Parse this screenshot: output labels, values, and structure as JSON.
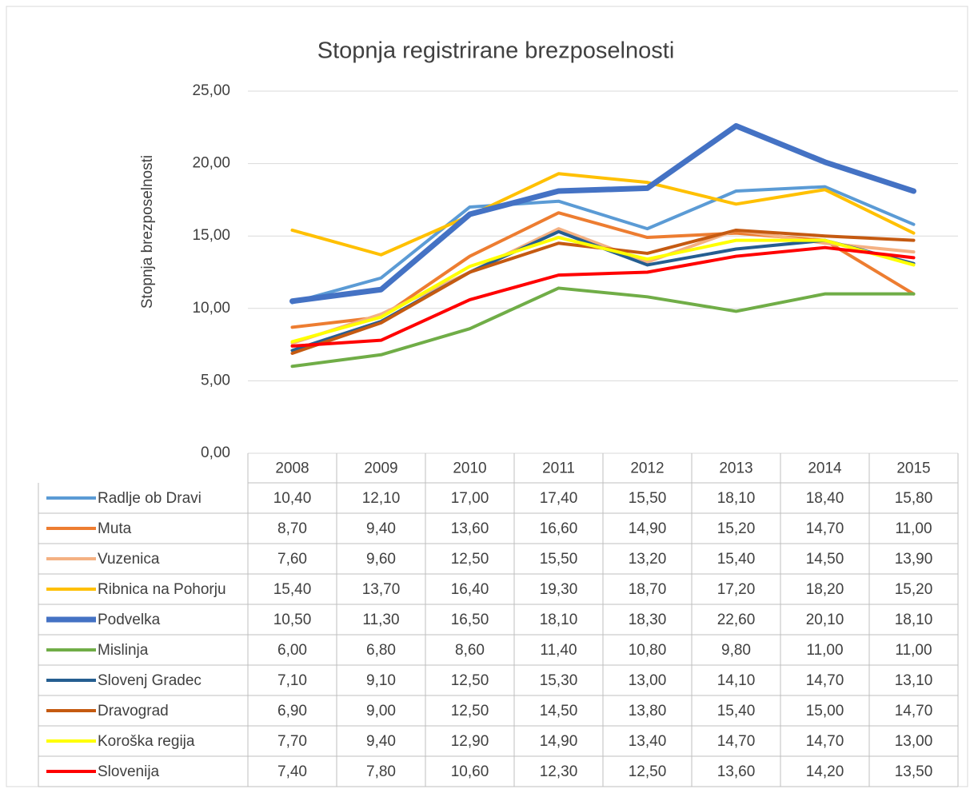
{
  "chart_data": {
    "type": "line",
    "title": "Stopnja registrirane brezposelnosti",
    "y_label": "Stopnja brezposelnosti",
    "categories": [
      "2008",
      "2009",
      "2010",
      "2011",
      "2012",
      "2013",
      "2014",
      "2015"
    ],
    "ylim": [
      0,
      25
    ],
    "yticks": [
      {
        "value": 0,
        "label": "0,00"
      },
      {
        "value": 5,
        "label": "5,00"
      },
      {
        "value": 10,
        "label": "10,00"
      },
      {
        "value": 15,
        "label": "15,00"
      },
      {
        "value": 20,
        "label": "20,00"
      },
      {
        "value": 25,
        "label": "25,00"
      }
    ],
    "grid": true,
    "series": [
      {
        "name": "Radlje ob Dravi",
        "color": "#5b9bd5",
        "values": [
          10.4,
          12.1,
          17.0,
          17.4,
          15.5,
          18.1,
          18.4,
          15.8
        ],
        "value_labels": [
          "10,40",
          "12,10",
          "17,00",
          "17,40",
          "15,50",
          "18,10",
          "18,40",
          "15,80"
        ]
      },
      {
        "name": "Muta",
        "color": "#ed7d31",
        "values": [
          8.7,
          9.4,
          13.6,
          16.6,
          14.9,
          15.2,
          14.7,
          11.0
        ],
        "value_labels": [
          "8,70",
          "9,40",
          "13,60",
          "16,60",
          "14,90",
          "15,20",
          "14,70",
          "11,00"
        ]
      },
      {
        "name": "Vuzenica",
        "color": "#f4b183",
        "values": [
          7.6,
          9.6,
          12.5,
          15.5,
          13.2,
          15.4,
          14.5,
          13.9
        ],
        "value_labels": [
          "7,60",
          "9,60",
          "12,50",
          "15,50",
          "13,20",
          "15,40",
          "14,50",
          "13,90"
        ]
      },
      {
        "name": "Ribnica na Pohorju",
        "color": "#ffc000",
        "values": [
          15.4,
          13.7,
          16.4,
          19.3,
          18.7,
          17.2,
          18.2,
          15.2
        ],
        "value_labels": [
          "15,40",
          "13,70",
          "16,40",
          "19,30",
          "18,70",
          "17,20",
          "18,20",
          "15,20"
        ]
      },
      {
        "name": "Podvelka",
        "color": "#4472c4",
        "values": [
          10.5,
          11.3,
          16.5,
          18.1,
          18.3,
          22.6,
          20.1,
          18.1
        ],
        "value_labels": [
          "10,50",
          "11,30",
          "16,50",
          "18,10",
          "18,30",
          "22,60",
          "20,10",
          "18,10"
        ]
      },
      {
        "name": "Mislinja",
        "color": "#70ad47",
        "values": [
          6.0,
          6.8,
          8.6,
          11.4,
          10.8,
          9.8,
          11.0,
          11.0
        ],
        "value_labels": [
          "6,00",
          "6,80",
          "8,60",
          "11,40",
          "10,80",
          "9,80",
          "11,00",
          "11,00"
        ]
      },
      {
        "name": "Slovenj Gradec",
        "color": "#255e91",
        "values": [
          7.1,
          9.1,
          12.5,
          15.3,
          13.0,
          14.1,
          14.7,
          13.1
        ],
        "value_labels": [
          "7,10",
          "9,10",
          "12,50",
          "15,30",
          "13,00",
          "14,10",
          "14,70",
          "13,10"
        ]
      },
      {
        "name": "Dravograd",
        "color": "#c55a11",
        "values": [
          6.9,
          9.0,
          12.5,
          14.5,
          13.8,
          15.4,
          15.0,
          14.7
        ],
        "value_labels": [
          "6,90",
          "9,00",
          "12,50",
          "14,50",
          "13,80",
          "15,40",
          "15,00",
          "14,70"
        ]
      },
      {
        "name": "Koroška regija",
        "color": "#ffff00",
        "values": [
          7.7,
          9.4,
          12.9,
          14.9,
          13.4,
          14.7,
          14.7,
          13.0
        ],
        "value_labels": [
          "7,70",
          "9,40",
          "12,90",
          "14,90",
          "13,40",
          "14,70",
          "14,70",
          "13,00"
        ]
      },
      {
        "name": "Slovenija",
        "color": "#ff0000",
        "values": [
          7.4,
          7.8,
          10.6,
          12.3,
          12.5,
          13.6,
          14.2,
          13.5
        ],
        "value_labels": [
          "7,40",
          "7,80",
          "10,60",
          "12,30",
          "12,50",
          "13,60",
          "14,20",
          "13,50"
        ]
      }
    ]
  }
}
